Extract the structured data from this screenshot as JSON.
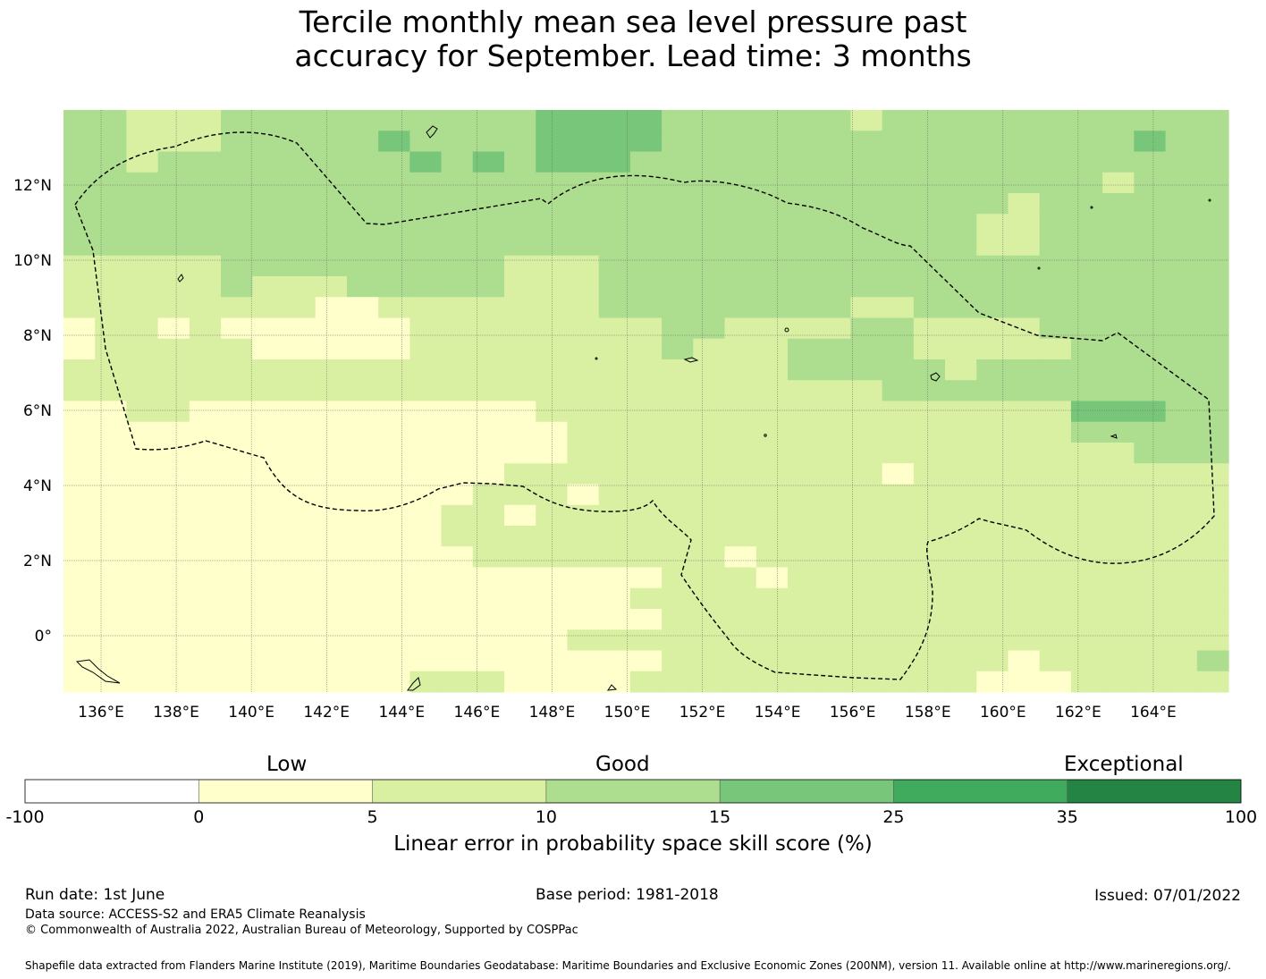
{
  "title_line1": "Tercile monthly mean sea level pressure past",
  "title_line2": "accuracy for September. Lead time: 3 months",
  "map": {
    "lon_ticks": [
      "136°E",
      "138°E",
      "140°E",
      "142°E",
      "144°E",
      "146°E",
      "148°E",
      "150°E",
      "152°E",
      "154°E",
      "156°E",
      "158°E",
      "160°E",
      "162°E",
      "164°E"
    ],
    "lat_ticks": [
      "12°N",
      "10°N",
      "8°N",
      "6°N",
      "4°N",
      "2°N",
      "0°"
    ],
    "lon_range": [
      135.0,
      166.0
    ],
    "lat_range": [
      -1.5,
      14.0
    ],
    "colors": {
      "c0": "#ffffcc",
      "c1": "#d9f0a3",
      "c2": "#addd8e",
      "c3": "#78c679",
      "c4": "#41ab5d",
      "c5": "#238443"
    }
  },
  "colorbar": {
    "category_labels": {
      "low": "Low",
      "good": "Good",
      "exceptional": "Exceptional"
    },
    "ticks": [
      "-100",
      "0",
      "5",
      "10",
      "15",
      "25",
      "35",
      "100"
    ],
    "segment_colors": [
      "#ffffff",
      "#ffffcc",
      "#d9f0a3",
      "#addd8e",
      "#78c679",
      "#41ab5d",
      "#238443"
    ],
    "title": "Linear error in probability space skill score (%)"
  },
  "footer": {
    "run_date": "Run date: 1st June",
    "base_period": "Base period: 1981-2018",
    "issued": "Issued: 07/01/2022",
    "data_source": "Data source: ACCESS-S2 and ERA5 Climate Reanalysis",
    "copyright": "© Commonwealth of Australia 2022, Australian Bureau of Meteorology, Supported by COSPPac",
    "shapefile": "Shapefile data extracted from Flanders Marine Institute (2019), Maritime Boundaries Geodatabase: Maritime Boundaries and Exclusive Economic Zones (200NM), version 11. Available online at http://www.marineregions.org/."
  }
}
